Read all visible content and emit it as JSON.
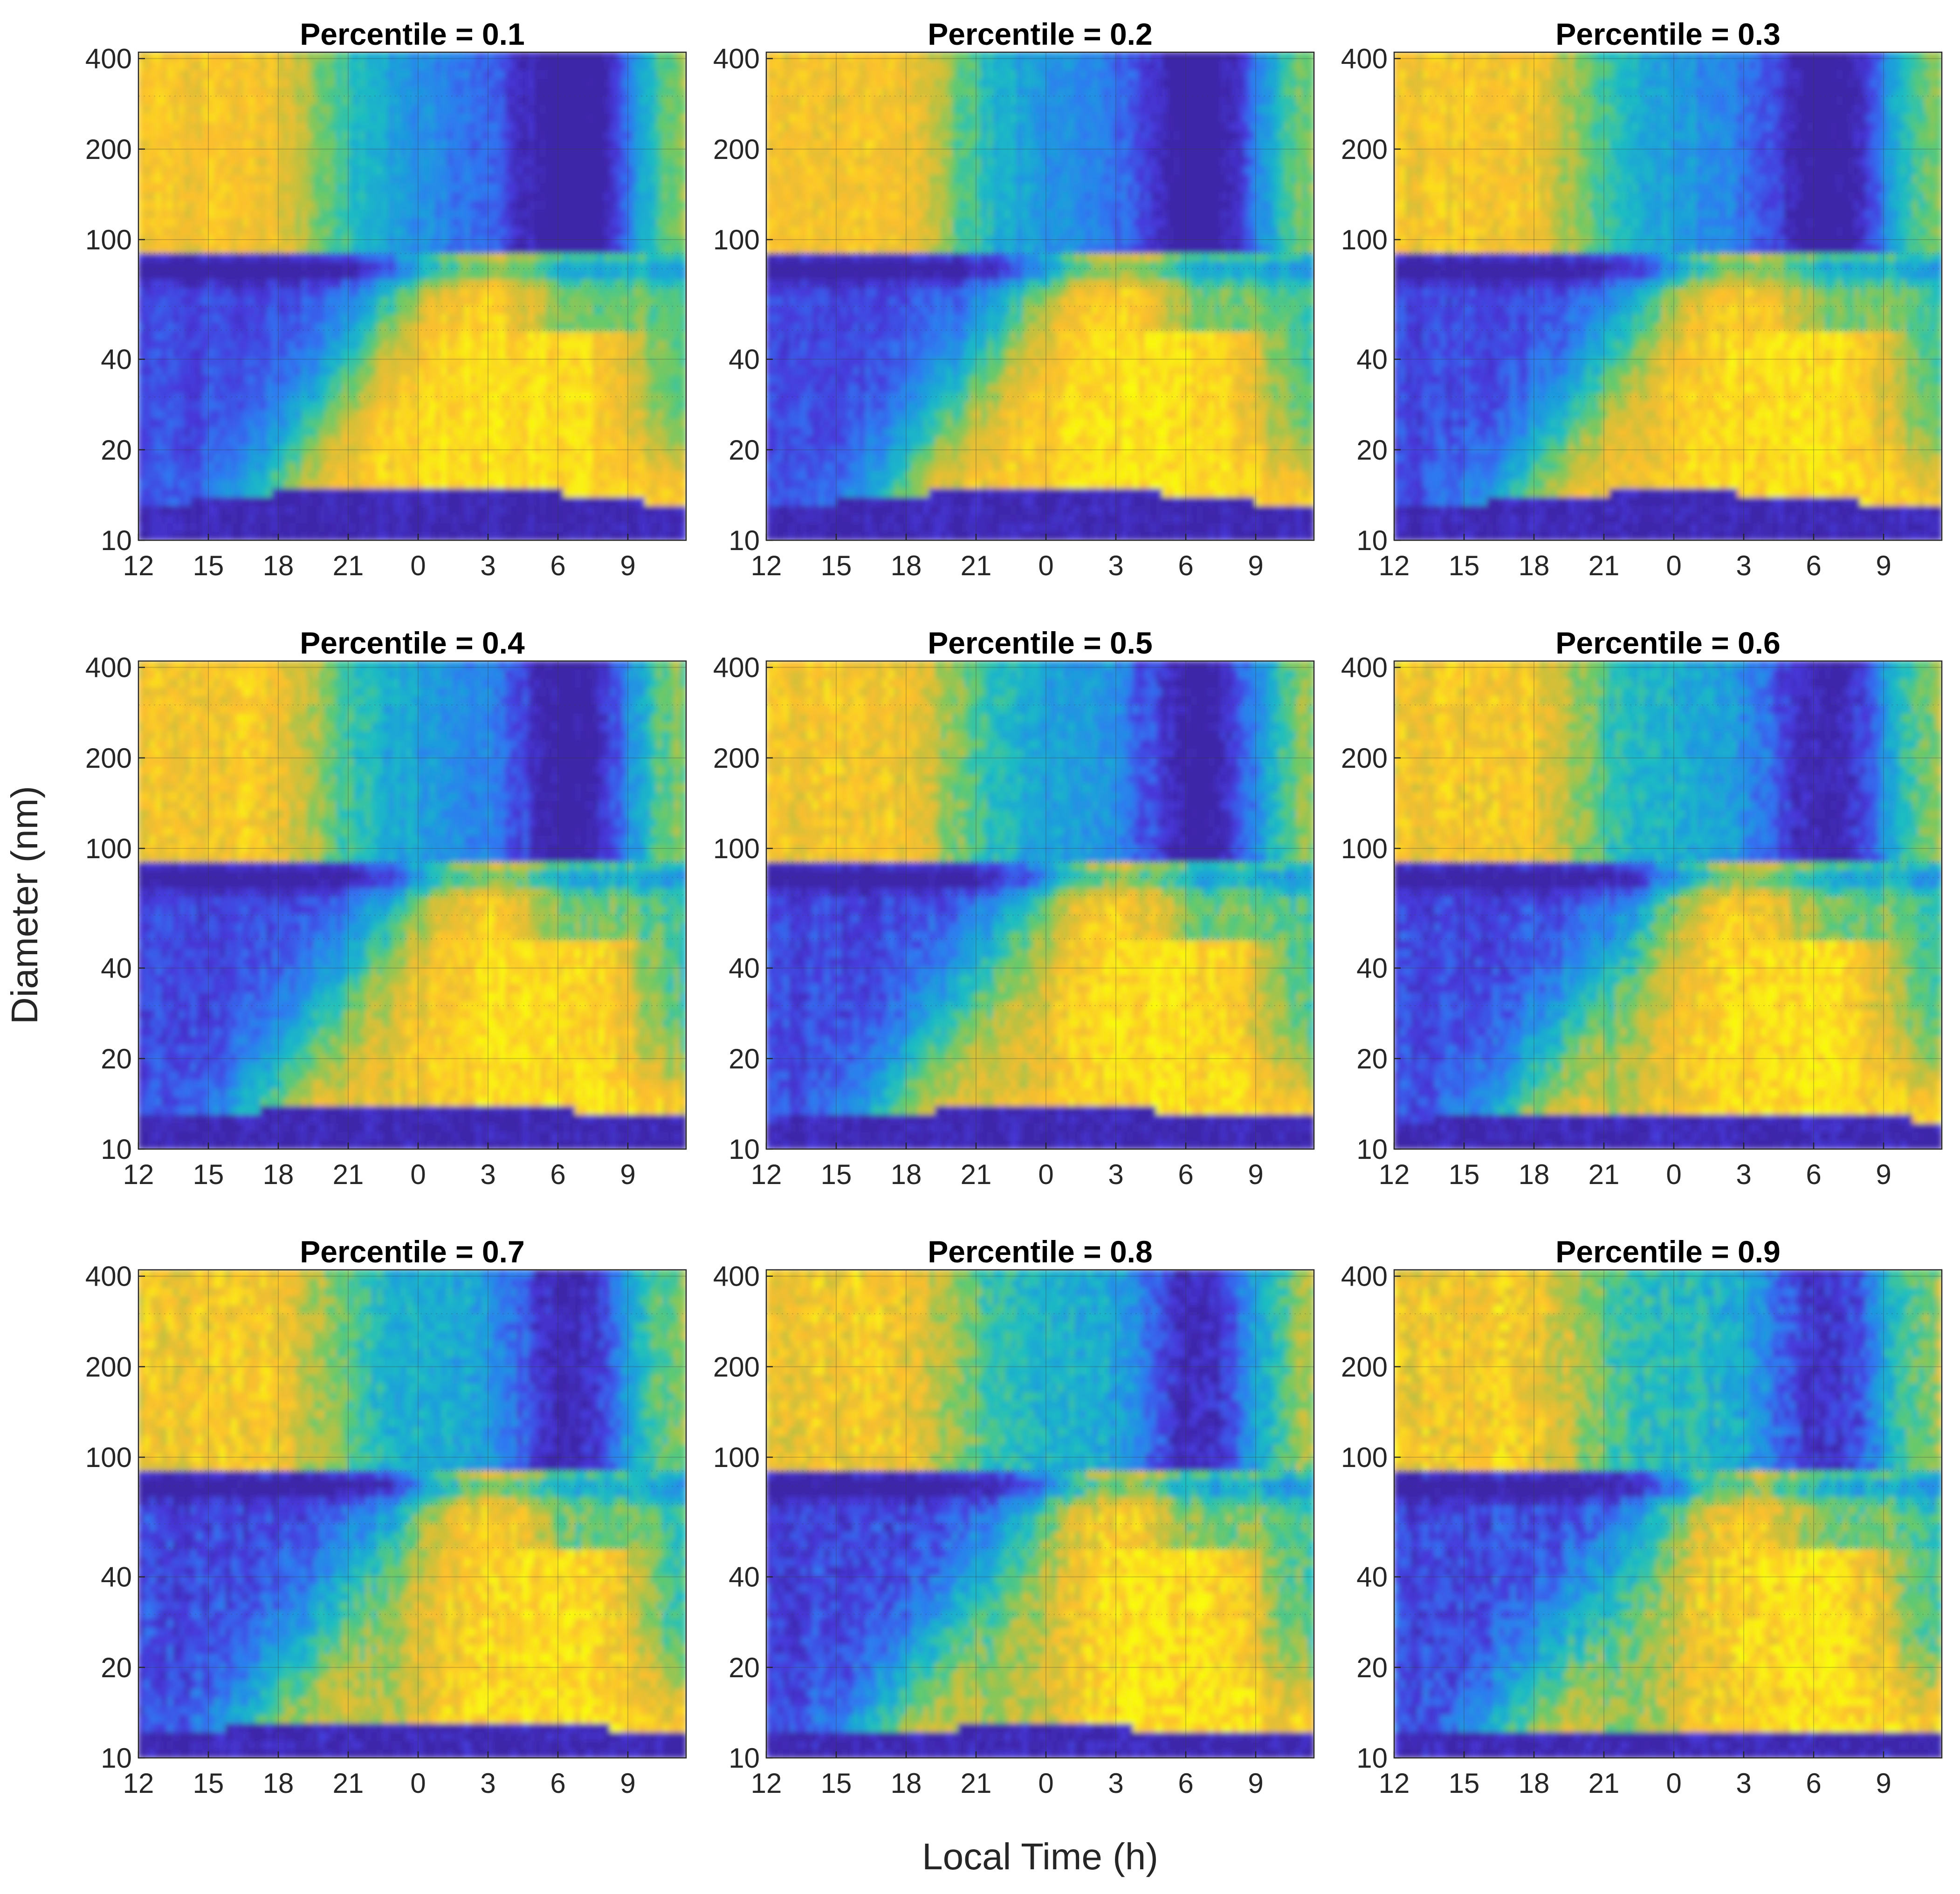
{
  "chart_data": {
    "type": "heatmap",
    "xlabel": "Local Time (h)",
    "ylabel": "Diameter (nm)",
    "x_ticks": [
      "12",
      "15",
      "18",
      "21",
      "0",
      "3",
      "6",
      "9"
    ],
    "x_range_hours_from_noon": [
      0,
      23.5
    ],
    "y_ticks": [
      10,
      20,
      40,
      100,
      200,
      400
    ],
    "y_range": [
      10,
      420
    ],
    "y_scale": "log",
    "grid": true,
    "colormap": "parula",
    "colors": {
      "low": "#3e26a8",
      "mid_low": "#2f78f2",
      "mid": "#1fbfc0",
      "mid_high": "#7fcb5f",
      "high": "#fdbf2e",
      "max": "#f9fb0e"
    },
    "panels": [
      {
        "title": "Percentile = 0.1",
        "percentile": 0.1
      },
      {
        "title": "Percentile = 0.2",
        "percentile": 0.2
      },
      {
        "title": "Percentile = 0.3",
        "percentile": 0.3
      },
      {
        "title": "Percentile = 0.4",
        "percentile": 0.4
      },
      {
        "title": "Percentile = 0.5",
        "percentile": 0.5
      },
      {
        "title": "Percentile = 0.6",
        "percentile": 0.6
      },
      {
        "title": "Percentile = 0.7",
        "percentile": 0.7
      },
      {
        "title": "Percentile = 0.8",
        "percentile": 0.8
      },
      {
        "title": "Percentile = 0.9",
        "percentile": 0.9
      }
    ]
  }
}
